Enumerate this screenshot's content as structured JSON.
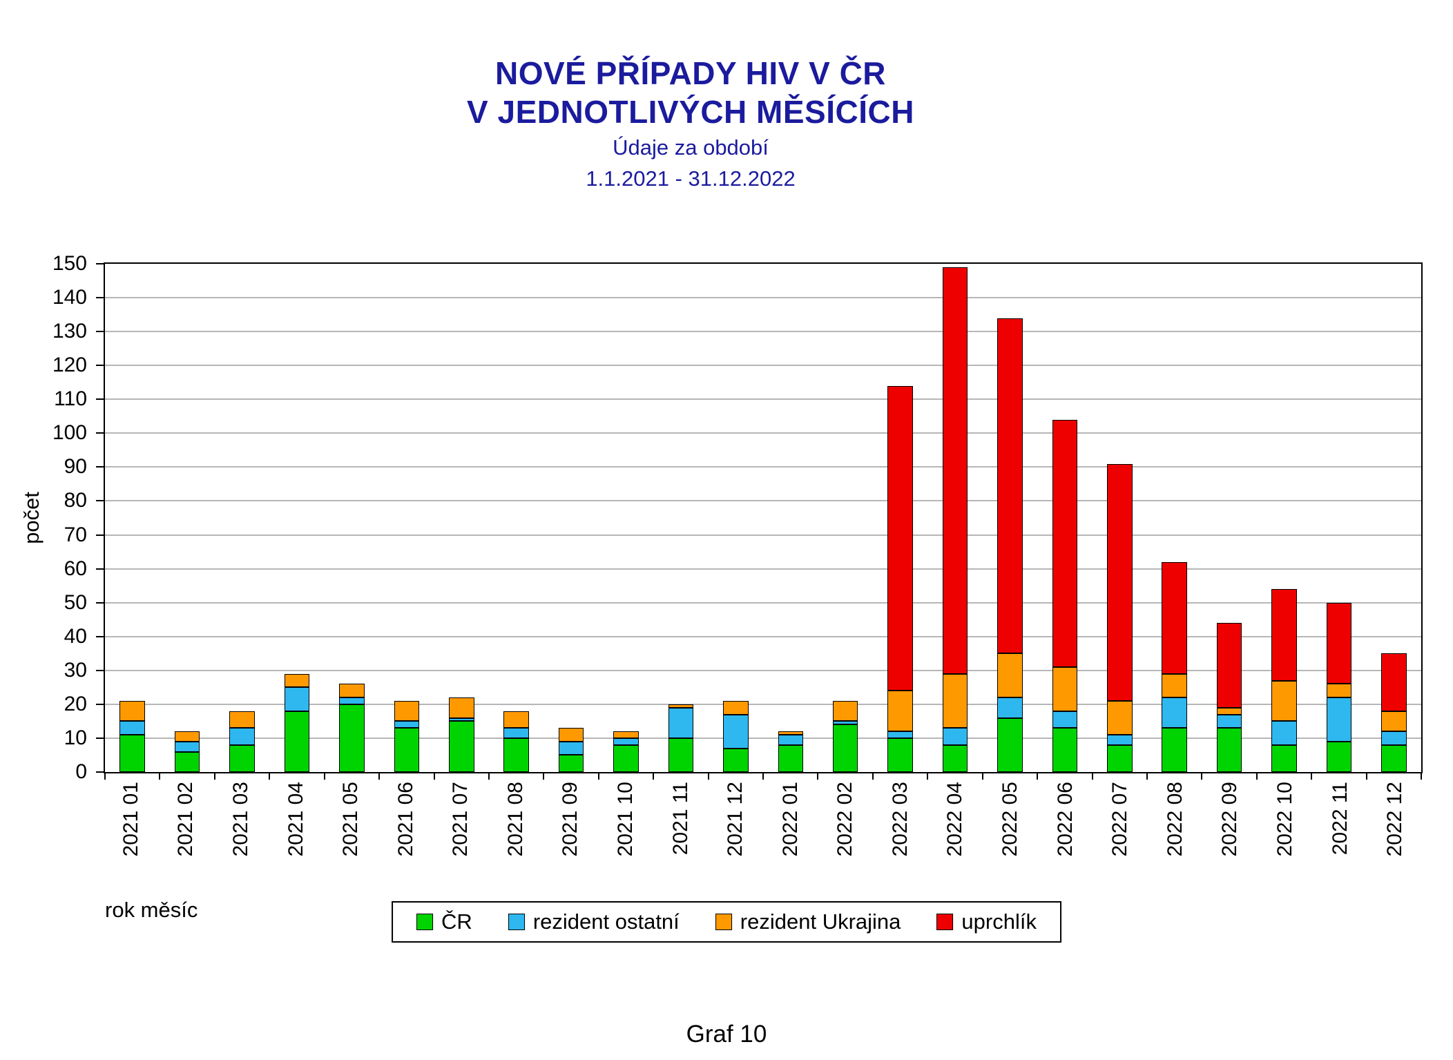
{
  "title": {
    "line1": "NOVÉ PŘÍPADY HIV V ČR",
    "line2": "V JEDNOTLIVÝCH MĚSÍCÍCH",
    "subtitle1": "Údaje za období",
    "subtitle2": "1.1.2021 - 31.12.2022"
  },
  "caption": "Graf 10",
  "axes": {
    "ylabel": "počet",
    "xlabel": "rok měsíc"
  },
  "colors": {
    "title": "#1b1b9e",
    "cr": "#00d400",
    "rezident_ostatni": "#2eb8ef",
    "rezident_ukrajina": "#ff9900",
    "uprchlik": "#ee0000",
    "gridline": "#6e6e6e"
  },
  "chart_data": {
    "type": "bar",
    "stacked": true,
    "title": "NOVÉ PŘÍPADY HIV V ČR V JEDNOTLIVÝCH MĚSÍCÍCH",
    "subtitle": "Údaje za období 1.1.2021 - 31.12.2022",
    "xlabel": "rok měsíc",
    "ylabel": "počet",
    "ylim": [
      0,
      150
    ],
    "ytick_step": 10,
    "grid": true,
    "legend_position": "bottom",
    "categories": [
      "2021 01",
      "2021 02",
      "2021 03",
      "2021 04",
      "2021 05",
      "2021 06",
      "2021 07",
      "2021 08",
      "2021 09",
      "2021 10",
      "2021 11",
      "2021 12",
      "2022 01",
      "2022 02",
      "2022 03",
      "2022 04",
      "2022 05",
      "2022 06",
      "2022 07",
      "2022 08",
      "2022 09",
      "2022 10",
      "2022 11",
      "2022 12"
    ],
    "series": [
      {
        "name": "ČR",
        "color": "#00d400",
        "values": [
          11,
          6,
          8,
          18,
          20,
          13,
          15,
          10,
          5,
          8,
          10,
          7,
          8,
          14,
          10,
          8,
          16,
          13,
          8,
          13,
          13,
          8,
          9,
          8
        ]
      },
      {
        "name": "rezident ostatní",
        "color": "#2eb8ef",
        "values": [
          4,
          3,
          5,
          7,
          2,
          2,
          1,
          3,
          4,
          2,
          9,
          10,
          3,
          1,
          2,
          5,
          6,
          5,
          3,
          9,
          4,
          7,
          13,
          4
        ]
      },
      {
        "name": "rezident Ukrajina",
        "color": "#ff9900",
        "values": [
          6,
          3,
          5,
          4,
          4,
          6,
          6,
          5,
          4,
          2,
          1,
          4,
          1,
          6,
          12,
          16,
          13,
          13,
          10,
          7,
          2,
          12,
          4,
          6
        ]
      },
      {
        "name": "uprchlík",
        "color": "#ee0000",
        "values": [
          0,
          0,
          0,
          0,
          0,
          0,
          0,
          0,
          0,
          0,
          0,
          0,
          0,
          0,
          90,
          120,
          99,
          73,
          70,
          33,
          25,
          27,
          24,
          17
        ]
      }
    ],
    "totals": [
      21,
      12,
      18,
      29,
      26,
      21,
      22,
      18,
      13,
      12,
      20,
      21,
      12,
      21,
      114,
      149,
      134,
      104,
      91,
      62,
      44,
      54,
      50,
      35
    ]
  }
}
